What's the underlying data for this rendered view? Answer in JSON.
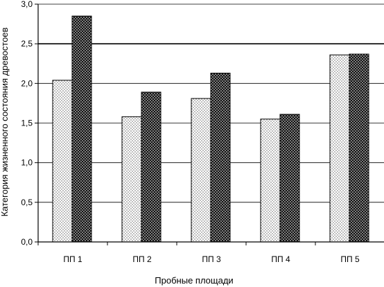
{
  "chart_data": {
    "type": "bar",
    "categories": [
      "ПП 1",
      "ПП 2",
      "ПП 3",
      "ПП 4",
      "ПП 5"
    ],
    "series": [
      {
        "values": [
          2.04,
          1.58,
          1.81,
          1.55,
          2.36
        ],
        "pattern": "light-dots",
        "color": "#f4f4f4"
      },
      {
        "values": [
          2.85,
          1.89,
          2.13,
          1.61,
          2.37
        ],
        "pattern": "dark-dots",
        "color": "#3a3a3a"
      }
    ],
    "xlabel": "Пробные площади",
    "ylabel": "Категория жизненного состояния древостоев",
    "ylim": [
      0,
      3
    ],
    "yticks": [
      "0,0",
      "0,5",
      "1,0",
      "1,5",
      "2,0",
      "2,5",
      "3,0"
    ],
    "grid": true,
    "emphasized_gridline": 2.5
  }
}
